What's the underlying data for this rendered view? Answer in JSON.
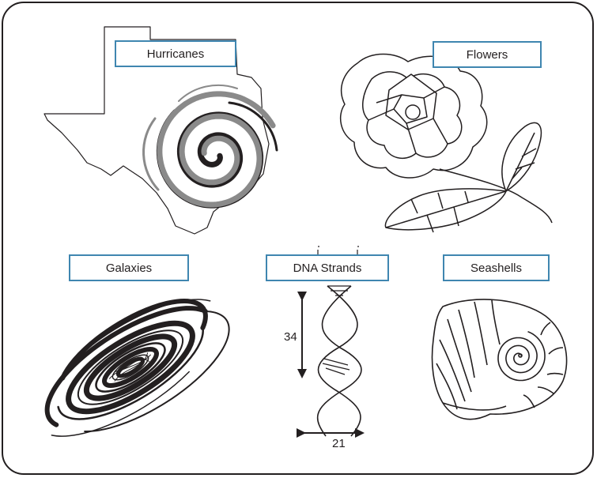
{
  "labels": {
    "hurricanes": "Hurricanes",
    "flowers": "Flowers",
    "galaxies": "Galaxies",
    "dna": "DNA Strands",
    "seashells": "Seashells"
  },
  "dna_measurements": {
    "height": "34",
    "width": "21"
  },
  "colors": {
    "line": "#231f20",
    "hurricane_gray": "#8a8a8a",
    "label_border": "#3f86b0"
  },
  "icons": [
    "texas-map-outline",
    "hurricane-spiral",
    "flower-with-leaves",
    "spiral-galaxy",
    "dna-double-helix",
    "nautilus-seashell"
  ]
}
